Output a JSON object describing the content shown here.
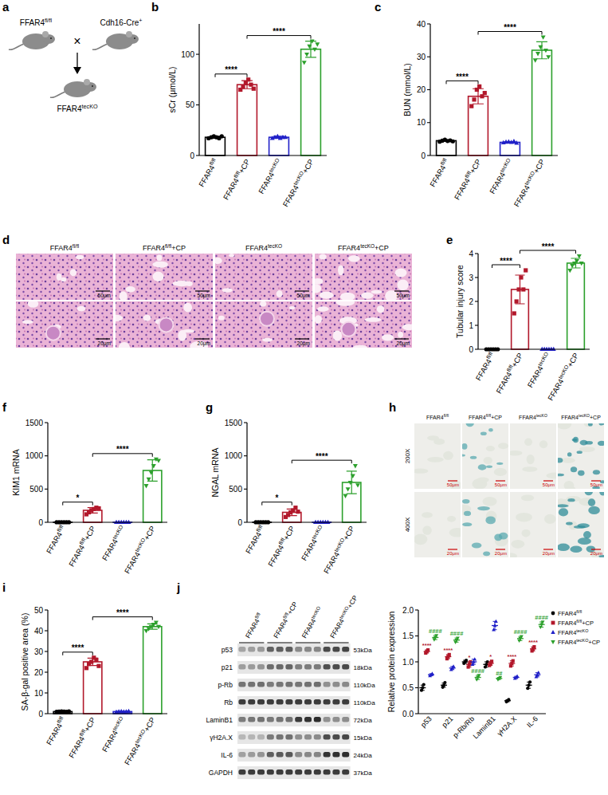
{
  "panel_labels": [
    "a",
    "b",
    "c",
    "d",
    "e",
    "f",
    "g",
    "h",
    "i",
    "j"
  ],
  "diagram": {
    "parents": [
      {
        "base": "FFAR4",
        "sup": "fl/fl"
      },
      {
        "base": "Cdh16-Cre",
        "sup": "+"
      }
    ],
    "operator": "×",
    "offspring": {
      "base": "FFAR4",
      "sup": "tecKO"
    }
  },
  "histology": {
    "columns": [
      "FFAR4fl/fl",
      "FFAR4fl/fl+CP",
      "FFAR4tecKO",
      "FFAR4tecKO+CP"
    ],
    "scale_bars": [
      "50μm",
      "20μm"
    ]
  },
  "sa_gal_staining": {
    "columns": [
      "FFAR4fl/fl",
      "FFAR4fl/fl+CP",
      "FFAR4tecKO",
      "FFAR4tecKO+CP"
    ],
    "rows": [
      "200X",
      "400X"
    ],
    "scale_bars": [
      "50μm",
      "20μm"
    ]
  },
  "western_blot": {
    "columns": [
      "FFAR4fl/fl",
      "FFAR4fl/fl+CP",
      "FFAR4tecKO",
      "FFAR4tecKO+CP"
    ],
    "rows": [
      {
        "name": "p53",
        "size": "53kDa"
      },
      {
        "name": "p21",
        "size": "18kDa"
      },
      {
        "name": "p-Rb",
        "size": "110kDa"
      },
      {
        "name": "Rb",
        "size": "110kDa"
      },
      {
        "name": "LaminB1",
        "size": "72kDa"
      },
      {
        "name": "γH2A.X",
        "size": "15kDa"
      },
      {
        "name": "IL-6",
        "size": "24kDa"
      },
      {
        "name": "GAPDH",
        "size": "37kDa"
      }
    ]
  },
  "chart_data": [
    {
      "type": "bar",
      "y_label": "sCr (μmol/L)",
      "categories": [
        "FFAR4fl/fl",
        "FFAR4fl/fl+CP",
        "FFAR4tecKO",
        "FFAR4tecKO+CP"
      ],
      "values": [
        18,
        70,
        18,
        105
      ],
      "errors": [
        1,
        4,
        1,
        8
      ],
      "points": [
        [
          17,
          18,
          19,
          18,
          17,
          19
        ],
        [
          65,
          68,
          72,
          75,
          70,
          66
        ],
        [
          17,
          18,
          19,
          17,
          18,
          18
        ],
        [
          92,
          100,
          108,
          113,
          105,
          110
        ]
      ],
      "colors": [
        "#000000",
        "#b2182b",
        "#2121c8",
        "#2ca02c"
      ],
      "ylim": [
        0,
        130
      ],
      "yticks": [
        0,
        50,
        100
      ],
      "annotations": [
        {
          "from": 0,
          "to": 1,
          "label": "****"
        },
        {
          "from": 1,
          "to": 3,
          "label": "****"
        }
      ]
    },
    {
      "type": "bar",
      "y_label": "BUN (mmol/L)",
      "categories": [
        "FFAR4fl/fl",
        "FFAR4fl/fl+CP",
        "FFAR4tecKO",
        "FFAR4tecKO+CP"
      ],
      "values": [
        4.5,
        18,
        4,
        32
      ],
      "errors": [
        0.2,
        2.3,
        0.2,
        2.6
      ],
      "points": [
        [
          4.2,
          4.5,
          4.8,
          4.4,
          4.6,
          4.3
        ],
        [
          15,
          17,
          20,
          21,
          18,
          19
        ],
        [
          3.9,
          4.1,
          4.2,
          4.0,
          4.3,
          3.8
        ],
        [
          29,
          31,
          33,
          36,
          32,
          30
        ]
      ],
      "colors": [
        "#000000",
        "#b2182b",
        "#2121c8",
        "#2ca02c"
      ],
      "ylim": [
        0,
        40
      ],
      "yticks": [
        0,
        10,
        20,
        30,
        40
      ],
      "annotations": [
        {
          "from": 0,
          "to": 1,
          "label": "****"
        },
        {
          "from": 1,
          "to": 3,
          "label": "****"
        }
      ]
    },
    {
      "type": "bar",
      "y_label": "Tubular injury score",
      "categories": [
        "FFAR4fl/fl",
        "FFAR4fl/fl+CP",
        "FFAR4tecKO",
        "FFAR4tecKO+CP"
      ],
      "values": [
        0,
        2.5,
        0,
        3.6
      ],
      "errors": [
        0,
        0.6,
        0,
        0.2
      ],
      "points": [
        [
          0,
          0,
          0,
          0,
          0,
          0
        ],
        [
          1.5,
          2,
          2.5,
          3,
          2.5,
          3.3
        ],
        [
          0,
          0,
          0,
          0,
          0,
          0
        ],
        [
          3.3,
          3.5,
          3.6,
          3.7,
          3.9,
          3.6
        ]
      ],
      "colors": [
        "#000000",
        "#b2182b",
        "#2121c8",
        "#2ca02c"
      ],
      "ylim": [
        0,
        4
      ],
      "yticks": [
        0,
        1,
        2,
        3,
        4
      ],
      "annotations": [
        {
          "from": 0,
          "to": 1,
          "label": "****"
        },
        {
          "from": 1,
          "to": 3,
          "label": "****"
        }
      ]
    },
    {
      "type": "bar",
      "y_label": "KIM1 mRNA",
      "categories": [
        "FFAR4fl/fl",
        "FFAR4fl/fl+CP",
        "FFAR4tecKO",
        "FFAR4tecKO+CP"
      ],
      "values": [
        1,
        180,
        1,
        780
      ],
      "errors": [
        0,
        40,
        0,
        160
      ],
      "points": [
        [
          1,
          1,
          1,
          1,
          1,
          1
        ],
        [
          120,
          150,
          180,
          200,
          220,
          210
        ],
        [
          1,
          1,
          1,
          1,
          1,
          1
        ],
        [
          550,
          650,
          750,
          850,
          950,
          930
        ]
      ],
      "colors": [
        "#000000",
        "#b2182b",
        "#2121c8",
        "#2ca02c"
      ],
      "ylim": [
        0,
        1500
      ],
      "yticks": [
        0,
        500,
        1000,
        1500
      ],
      "annotations": [
        {
          "from": 0,
          "to": 1,
          "label": "*"
        },
        {
          "from": 1,
          "to": 3,
          "label": "****"
        }
      ]
    },
    {
      "type": "bar",
      "y_label": "NGAL mRNA",
      "categories": [
        "FFAR4fl/fl",
        "FFAR4fl/fl+CP",
        "FFAR4tecKO",
        "FFAR4tecKO+CP"
      ],
      "values": [
        1,
        150,
        1,
        600
      ],
      "errors": [
        0,
        50,
        0,
        170
      ],
      "points": [
        [
          1,
          1,
          1,
          1,
          1,
          1
        ],
        [
          80,
          110,
          150,
          180,
          220,
          160
        ],
        [
          1,
          1,
          1,
          1,
          1,
          1
        ],
        [
          400,
          500,
          600,
          700,
          850,
          560
        ]
      ],
      "colors": [
        "#000000",
        "#b2182b",
        "#2121c8",
        "#2ca02c"
      ],
      "ylim": [
        0,
        1500
      ],
      "yticks": [
        0,
        500,
        1000,
        1500
      ],
      "annotations": [
        {
          "from": 0,
          "to": 1,
          "label": "*"
        },
        {
          "from": 1,
          "to": 3,
          "label": "****"
        }
      ]
    },
    {
      "type": "bar",
      "y_label": "SA-β-gal positive area (%)",
      "categories": [
        "FFAR4fl/fl",
        "FFAR4fl/fl+CP",
        "FFAR4tecKO",
        "FFAR4tecKO+CP"
      ],
      "values": [
        1,
        25,
        1,
        42
      ],
      "errors": [
        0.1,
        1.8,
        0.1,
        1.3
      ],
      "points": [
        [
          0.9,
          1,
          1.1,
          1,
          0.9,
          1.1
        ],
        [
          22,
          24,
          25,
          27,
          26,
          23
        ],
        [
          0.8,
          1,
          1.1,
          0.9,
          1,
          1.2
        ],
        [
          40,
          41,
          42,
          43,
          44,
          42
        ]
      ],
      "colors": [
        "#000000",
        "#b2182b",
        "#2121c8",
        "#2ca02c"
      ],
      "ylim": [
        0,
        50
      ],
      "yticks": [
        0,
        10,
        20,
        30,
        40,
        50
      ],
      "annotations": [
        {
          "from": 0,
          "to": 1,
          "label": "****"
        },
        {
          "from": 1,
          "to": 3,
          "label": "****"
        }
      ]
    },
    {
      "type": "dot",
      "y_label": "Relative protein expression",
      "categories": [
        "p53",
        "p21",
        "p-Rb/Rb",
        "LaminB1",
        "γH2A.X",
        "IL-6"
      ],
      "ylim": [
        0,
        2
      ],
      "yticks": [
        {
          "value": 0,
          "label": "0.0"
        },
        {
          "value": 0.5,
          "label": "0.5"
        },
        {
          "value": 1,
          "label": "1.0"
        },
        {
          "value": 1.5,
          "label": "1.5"
        },
        {
          "value": 2,
          "label": "2.0"
        }
      ],
      "legend": "right",
      "series": [
        {
          "name": "FFAR4fl/fl",
          "color": "#000000",
          "values": [
            0.5,
            0.55,
            1.0,
            0.95,
            0.25,
            0.55
          ],
          "errors": [
            0.05,
            0.04,
            0.03,
            0.05,
            0.02,
            0.06
          ],
          "points": [
            [
              0.45,
              0.5,
              0.56
            ],
            [
              0.51,
              0.55,
              0.6
            ],
            [
              0.97,
              1.0,
              1.03
            ],
            [
              0.9,
              0.95,
              1.0
            ],
            [
              0.23,
              0.25,
              0.27
            ],
            [
              0.49,
              0.55,
              0.61
            ]
          ]
        },
        {
          "name": "FFAR4fl/fl+CP",
          "color": "#b2182b",
          "values": [
            1.2,
            1.1,
            0.95,
            0.97,
            0.97,
            1.25
          ],
          "errors": [
            0.03,
            0.04,
            0.05,
            0.04,
            0.05,
            0.04
          ],
          "points": [
            [
              1.17,
              1.2,
              1.23
            ],
            [
              1.06,
              1.1,
              1.14
            ],
            [
              0.9,
              0.95,
              1.0
            ],
            [
              0.93,
              0.97,
              1.01
            ],
            [
              0.92,
              0.97,
              1.02
            ],
            [
              1.21,
              1.25,
              1.29
            ]
          ],
          "annotations": [
            "****",
            "****",
            "*",
            "*",
            "****",
            "****"
          ]
        },
        {
          "name": "FFAR4tecKO",
          "color": "#2121c8",
          "values": [
            0.75,
            0.88,
            1.0,
            1.7,
            0.7,
            0.75
          ],
          "errors": [
            0.02,
            0.03,
            0.05,
            0.08,
            0.02,
            0.04
          ],
          "points": [
            [
              0.73,
              0.75,
              0.77
            ],
            [
              0.85,
              0.88,
              0.91
            ],
            [
              0.95,
              1.0,
              1.05
            ],
            [
              1.62,
              1.7,
              1.78
            ],
            [
              0.68,
              0.7,
              0.72
            ],
            [
              0.71,
              0.75,
              0.79
            ]
          ]
        },
        {
          "name": "FFAR4tecKO+CP",
          "color": "#2ca02c",
          "values": [
            1.47,
            1.42,
            0.7,
            0.68,
            1.45,
            1.72
          ],
          "errors": [
            0.04,
            0.04,
            0.04,
            0.02,
            0.04,
            0.05
          ],
          "points": [
            [
              1.43,
              1.47,
              1.51
            ],
            [
              1.38,
              1.42,
              1.46
            ],
            [
              0.66,
              0.7,
              0.74
            ],
            [
              0.66,
              0.68,
              0.7
            ],
            [
              1.41,
              1.45,
              1.49
            ],
            [
              1.67,
              1.72,
              1.77
            ]
          ],
          "annotations": [
            "####",
            "####",
            "####",
            "##",
            "####",
            "####"
          ]
        }
      ]
    }
  ]
}
